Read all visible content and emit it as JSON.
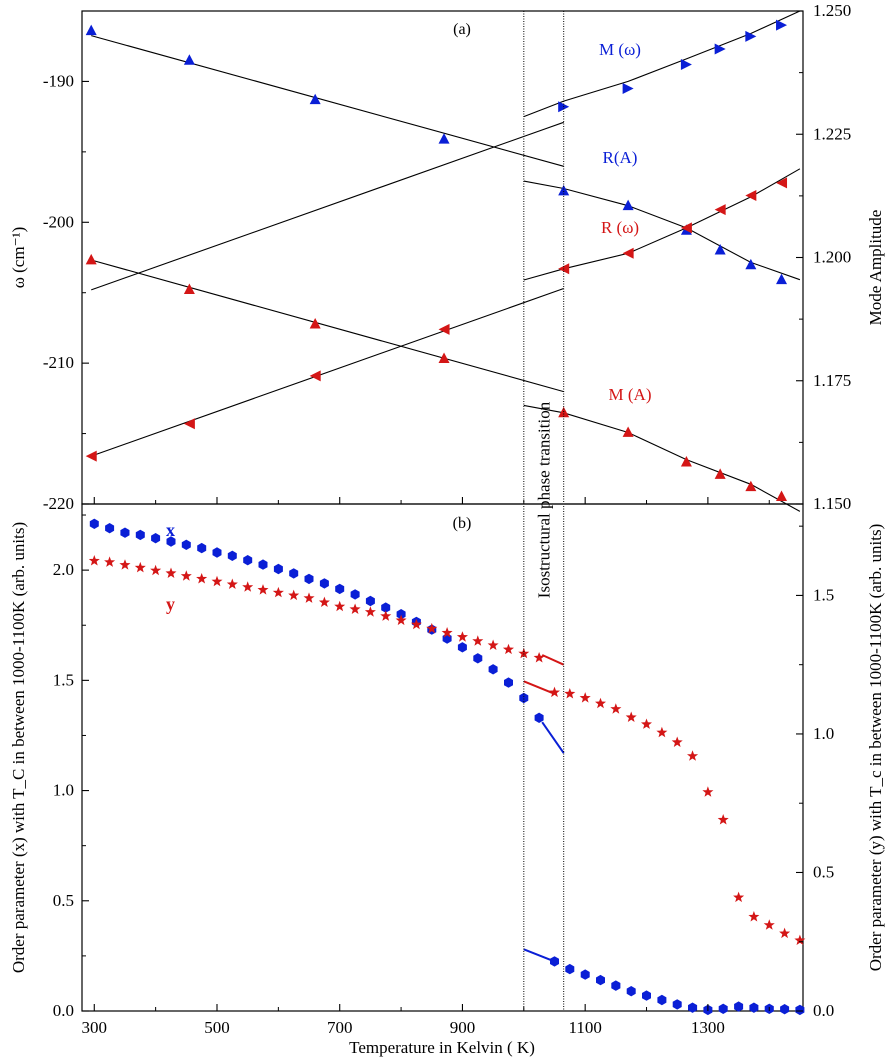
{
  "figure": {
    "xlabel": "Temperature in Kelvin ( K)",
    "xticks": [
      "300",
      "500",
      "700",
      "900",
      "1100",
      "1300"
    ],
    "transition_label": "Isostructural phase transition"
  },
  "colors": {
    "blue": "#0a1fd6",
    "red": "#d41616",
    "black": "#000000"
  },
  "chart_data": [
    {
      "panel": "a",
      "panel_label": "(a)",
      "type": "line",
      "xlim": [
        280,
        1455
      ],
      "ylabel_left": "ω (cm⁻¹)",
      "ylabel_right": "Mode Amplitude",
      "ylim_left": [
        -220,
        -185
      ],
      "ylim_right": [
        1.15,
        1.25
      ],
      "yticks_left": [
        "-190",
        "-200",
        "-210",
        "-220"
      ],
      "yticks_right": [
        "1.150",
        "1.175",
        "1.200",
        "1.225",
        "1.250"
      ],
      "transition_bounds": [
        1000,
        1065
      ],
      "series": [
        {
          "name": "M (ω)",
          "color": "blue",
          "marker": "triangle-right",
          "axis": "left",
          "points": [
            [
              1065,
              -191.8
            ],
            [
              1170,
              -190.5
            ],
            [
              1265,
              -188.8
            ],
            [
              1320,
              -187.7
            ],
            [
              1370,
              -186.8
            ],
            [
              1420,
              -186.0
            ]
          ],
          "fit_low": [
            [
              295,
              -204.8
            ],
            [
              1065,
              -192.9
            ]
          ],
          "fit_high": [
            [
              1000,
              -192.5
            ],
            [
              1065,
              -191.4
            ],
            [
              1170,
              -190.0
            ],
            [
              1265,
              -188.4
            ],
            [
              1370,
              -186.6
            ],
            [
              1450,
              -185.0
            ]
          ]
        },
        {
          "name": "R(A)",
          "color": "blue",
          "marker": "triangle-up",
          "axis": "right",
          "points": [
            [
              295,
              1.246
            ],
            [
              455,
              1.24
            ],
            [
              660,
              1.232
            ],
            [
              870,
              1.224
            ],
            [
              1065,
              1.2135
            ],
            [
              1170,
              1.2105
            ],
            [
              1265,
              1.2055
            ],
            [
              1320,
              1.2015
            ],
            [
              1370,
              1.1985
            ],
            [
              1420,
              1.1955
            ]
          ],
          "fit_low": [
            [
              295,
              1.245
            ],
            [
              1065,
              1.2185
            ]
          ],
          "fit_high": [
            [
              1000,
              1.2155
            ],
            [
              1065,
              1.214
            ],
            [
              1170,
              1.2105
            ],
            [
              1265,
              1.206
            ],
            [
              1370,
              1.199
            ],
            [
              1450,
              1.1955
            ]
          ]
        },
        {
          "name": "R (ω)",
          "color": "red",
          "marker": "triangle-left",
          "axis": "left",
          "points": [
            [
              295,
              -216.6
            ],
            [
              455,
              -214.3
            ],
            [
              660,
              -210.9
            ],
            [
              870,
              -207.6
            ],
            [
              1065,
              -203.3
            ],
            [
              1170,
              -202.2
            ],
            [
              1265,
              -200.4
            ],
            [
              1320,
              -199.1
            ],
            [
              1370,
              -198.1
            ],
            [
              1420,
              -197.2
            ]
          ],
          "fit_low": [
            [
              295,
              -216.6
            ],
            [
              1065,
              -204.7
            ]
          ],
          "fit_high": [
            [
              1000,
              -204.1
            ],
            [
              1065,
              -203.3
            ],
            [
              1170,
              -202.2
            ],
            [
              1265,
              -200.4
            ],
            [
              1370,
              -198.2
            ],
            [
              1450,
              -196.2
            ]
          ]
        },
        {
          "name": "M (A)",
          "color": "red",
          "marker": "triangle-up",
          "axis": "right",
          "points": [
            [
              295,
              1.1995
            ],
            [
              455,
              1.1935
            ],
            [
              660,
              1.1865
            ],
            [
              870,
              1.1795
            ],
            [
              1065,
              1.1685
            ],
            [
              1170,
              1.1645
            ],
            [
              1265,
              1.1585
            ],
            [
              1320,
              1.156
            ],
            [
              1370,
              1.1535
            ],
            [
              1420,
              1.1515
            ]
          ],
          "fit_low": [
            [
              295,
              1.1995
            ],
            [
              1065,
              1.1728
            ]
          ],
          "fit_high": [
            [
              1000,
              1.17
            ],
            [
              1065,
              1.1685
            ],
            [
              1170,
              1.1645
            ],
            [
              1265,
              1.159
            ],
            [
              1370,
              1.154
            ],
            [
              1450,
              1.1485
            ]
          ]
        }
      ]
    },
    {
      "panel": "b",
      "panel_label": "(b)",
      "type": "scatter",
      "xlim": [
        280,
        1455
      ],
      "ylabel_left": "Order parameter (x) with T_C in between 1000-1100K (arb. units)",
      "ylabel_right": "Order parameter (y) with T_c in between 1000-1100K (arb. units)",
      "ylim_left": [
        0,
        2.3
      ],
      "ylim_right": [
        0,
        1.83
      ],
      "yticks_left": [
        "0.0",
        "0.5",
        "1.0",
        "1.5",
        "2.0"
      ],
      "yticks_right": [
        "0.0",
        "0.5",
        "1.0",
        "1.5"
      ],
      "series": [
        {
          "name": "x",
          "color": "blue",
          "marker": "hexagon",
          "axis": "left",
          "x": [
            300,
            325,
            350,
            375,
            400,
            425,
            450,
            475,
            500,
            525,
            550,
            575,
            600,
            625,
            650,
            675,
            700,
            725,
            750,
            775,
            800,
            825,
            850,
            875,
            900,
            925,
            950,
            975,
            1000,
            1025,
            1050,
            1075,
            1100,
            1125,
            1150,
            1175,
            1200,
            1225,
            1250,
            1275,
            1300,
            1325,
            1350,
            1375,
            1400,
            1425,
            1450
          ],
          "values": [
            2.21,
            2.19,
            2.17,
            2.16,
            2.145,
            2.13,
            2.115,
            2.1,
            2.08,
            2.065,
            2.045,
            2.025,
            2.005,
            1.985,
            1.96,
            1.94,
            1.915,
            1.89,
            1.86,
            1.83,
            1.8,
            1.765,
            1.73,
            1.69,
            1.65,
            1.6,
            1.55,
            1.49,
            1.42,
            1.33,
            0.225,
            0.19,
            0.165,
            0.14,
            0.115,
            0.09,
            0.07,
            0.05,
            0.03,
            0.015,
            0.005,
            0.01,
            0.02,
            0.015,
            0.01,
            0.008,
            0.005
          ],
          "fit_segments": [
            [
              [
                1030,
                1.31
              ],
              [
                1065,
                1.17
              ]
            ],
            [
              [
                1000,
                0.28
              ],
              [
                1050,
                0.225
              ]
            ]
          ]
        },
        {
          "name": "y",
          "color": "red",
          "marker": "star",
          "axis": "right",
          "x": [
            300,
            325,
            350,
            375,
            400,
            425,
            450,
            475,
            500,
            525,
            550,
            575,
            600,
            625,
            650,
            675,
            700,
            725,
            750,
            775,
            800,
            825,
            850,
            875,
            900,
            925,
            950,
            975,
            1000,
            1025,
            1050,
            1075,
            1100,
            1125,
            1150,
            1175,
            1200,
            1225,
            1250,
            1275,
            1300,
            1325,
            1350,
            1375,
            1400,
            1425,
            1450
          ],
          "values": [
            1.625,
            1.62,
            1.61,
            1.6,
            1.59,
            1.58,
            1.57,
            1.56,
            1.55,
            1.54,
            1.53,
            1.52,
            1.51,
            1.5,
            1.49,
            1.475,
            1.46,
            1.45,
            1.44,
            1.425,
            1.41,
            1.395,
            1.38,
            1.365,
            1.35,
            1.335,
            1.32,
            1.305,
            1.29,
            1.275,
            1.15,
            1.145,
            1.13,
            1.11,
            1.09,
            1.06,
            1.035,
            1.005,
            0.97,
            0.92,
            0.79,
            0.69,
            0.41,
            0.34,
            0.31,
            0.28,
            0.255
          ],
          "fit_segments": [
            [
              [
                1030,
                1.285
              ],
              [
                1065,
                1.25
              ]
            ],
            [
              [
                1000,
                1.19
              ],
              [
                1050,
                1.145
              ]
            ]
          ]
        }
      ],
      "legend_labels": [
        "x",
        "y"
      ]
    }
  ]
}
